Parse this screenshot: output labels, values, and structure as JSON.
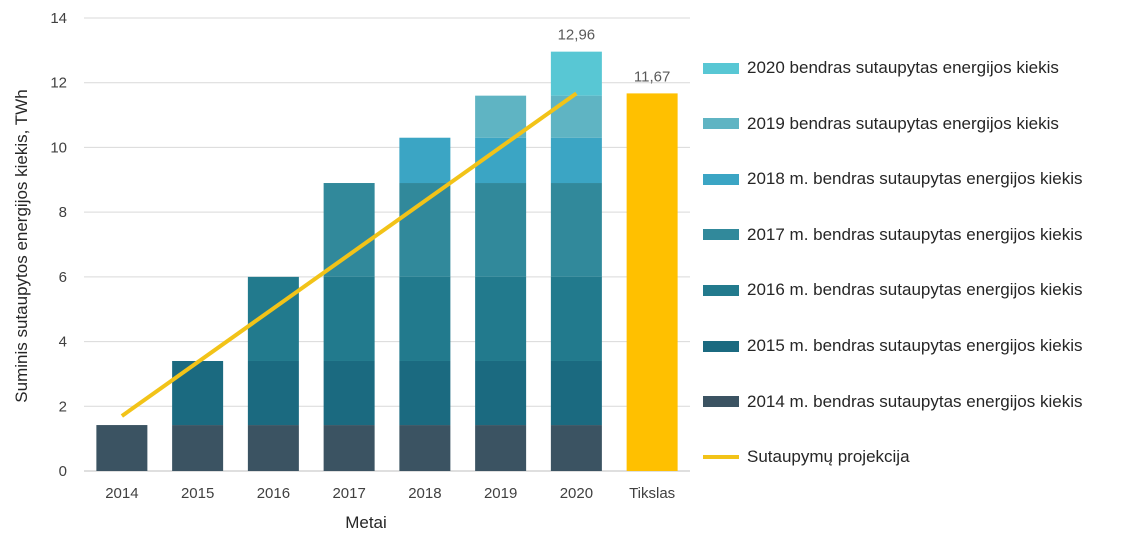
{
  "chart_data": {
    "type": "bar",
    "stacked": true,
    "categories": [
      "2014",
      "2015",
      "2016",
      "2017",
      "2018",
      "2019",
      "2020",
      "Tikslas"
    ],
    "ylabel": "Suminis sutaupytos energijos kiekis, TWh",
    "xlabel": "Metai",
    "ylim": [
      0,
      14
    ],
    "yticks": [
      0,
      2,
      4,
      6,
      8,
      10,
      12,
      14
    ],
    "grid": true,
    "legend_position": "right",
    "series": [
      {
        "name": "2014 m. bendras sutaupytas energijos kiekis",
        "color": "#3b5362",
        "values": [
          1.42,
          1.42,
          1.42,
          1.42,
          1.42,
          1.42,
          1.42,
          0
        ]
      },
      {
        "name": "2015 m. bendras sutaupytas energijos kiekis",
        "color": "#1b6a80",
        "values": [
          0,
          1.98,
          1.98,
          1.98,
          1.98,
          1.98,
          1.98,
          0
        ]
      },
      {
        "name": "2016 m. bendras sutaupytas energijos kiekis",
        "color": "#227a8d",
        "values": [
          0,
          0,
          2.6,
          2.6,
          2.6,
          2.6,
          2.6,
          0
        ]
      },
      {
        "name": "2017 m. bendras sutaupytas energijos kiekis",
        "color": "#31899b",
        "values": [
          0,
          0,
          0,
          2.9,
          2.9,
          2.9,
          2.9,
          0
        ]
      },
      {
        "name": "2018 m. bendras sutaupytas energijos kiekis",
        "color": "#3ba5c4",
        "values": [
          0,
          0,
          0,
          0,
          1.4,
          1.4,
          1.4,
          0
        ]
      },
      {
        "name": "2019 bendras sutaupytas energijos kiekis",
        "color": "#5fb4c3",
        "values": [
          0,
          0,
          0,
          0,
          0,
          1.3,
          1.3,
          0
        ]
      },
      {
        "name": "2020 bendras sutaupytas energijos kiekis",
        "color": "#58c7d4",
        "values": [
          0,
          0,
          0,
          0,
          0,
          0,
          1.36,
          0
        ]
      },
      {
        "name": "",
        "color": "#ffc000",
        "values": [
          0,
          0,
          0,
          0,
          0,
          0,
          0,
          11.67
        ]
      }
    ],
    "line": {
      "name": "Sutaupymų projekcija",
      "color": "#f2c318",
      "x": [
        "2014",
        "2020"
      ],
      "values": [
        1.7,
        11.67
      ]
    },
    "data_labels": [
      {
        "category": "2020",
        "value": 12.96,
        "text": "12,96"
      },
      {
        "category": "Tikslas",
        "value": 11.67,
        "text": "11,67"
      }
    ],
    "legend_order": [
      "2020 bendras sutaupytas energijos kiekis",
      "2019 bendras sutaupytas energijos kiekis",
      "2018 m. bendras sutaupytas energijos kiekis",
      "2017 m. bendras sutaupytas energijos kiekis",
      "2016 m. bendras sutaupytas energijos kiekis",
      "2015 m. bendras sutaupytas energijos kiekis",
      "2014 m. bendras sutaupytas energijos kiekis",
      "Sutaupymų projekcija"
    ]
  }
}
